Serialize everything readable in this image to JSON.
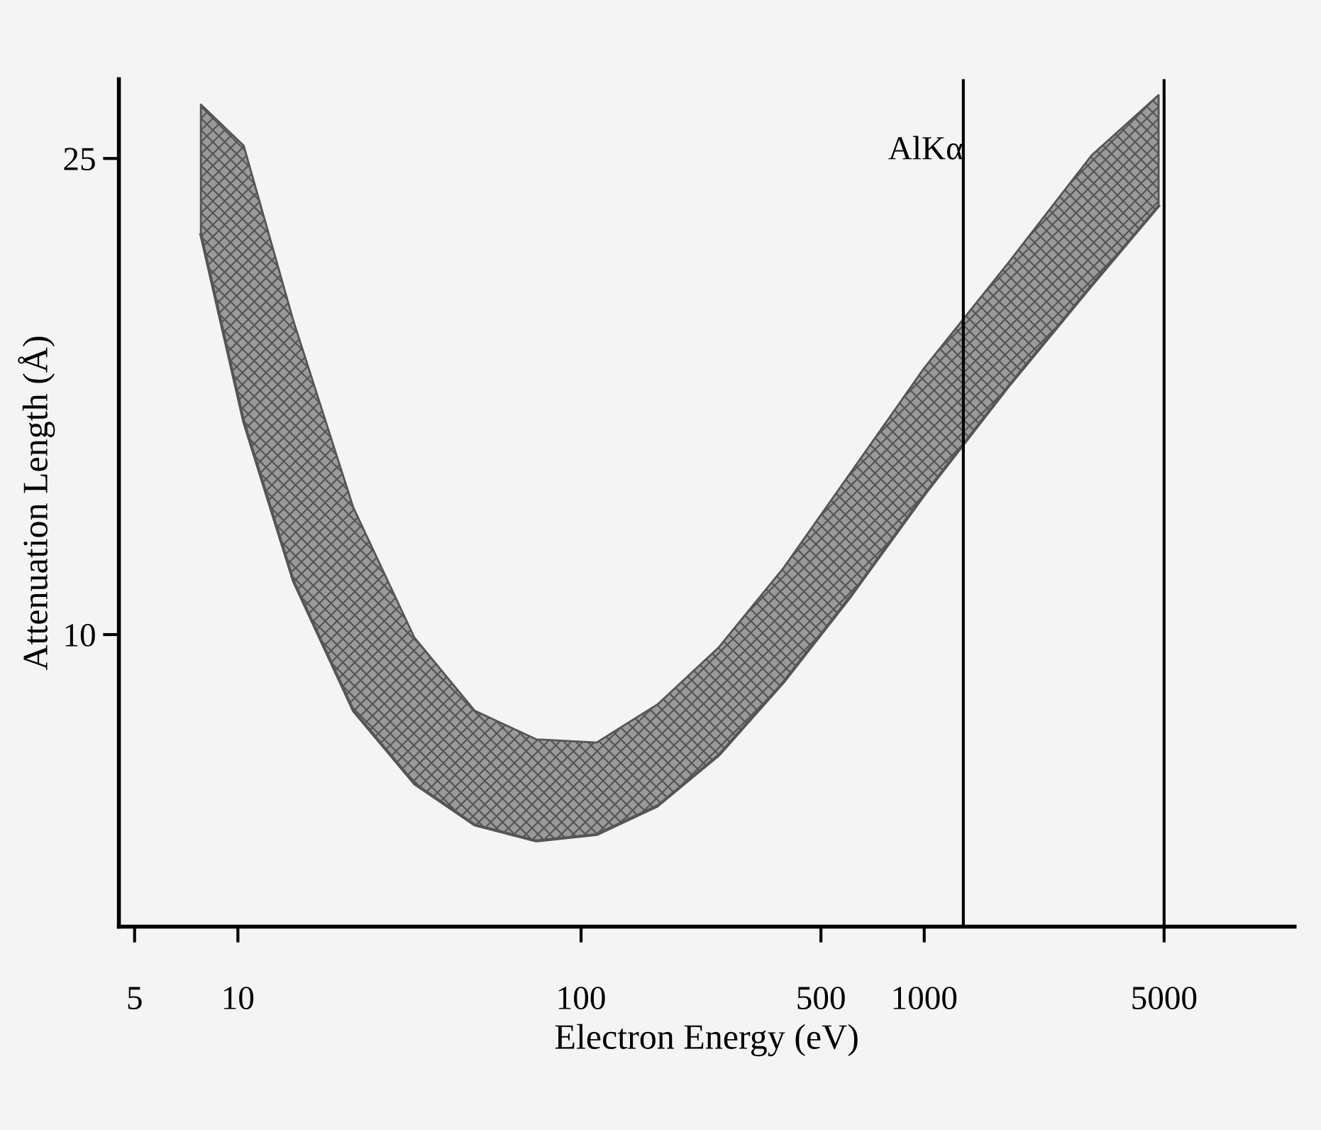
{
  "chart_data": {
    "type": "line",
    "xlabel": "Electron Energy (eV)",
    "ylabel": "Attenuation Length (Å)",
    "log": "x",
    "xlim": [
      4.5,
      12000
    ],
    "xticks": [
      5,
      10,
      100,
      500,
      1000,
      5000
    ],
    "ylim": [
      0.8,
      27.5
    ],
    "yticks": [
      10,
      25
    ],
    "series": [
      {
        "color": "#555555",
        "x": [
          7.8,
          10.4,
          14.5,
          21.7,
          32.7,
          49,
          74,
          111,
          167,
          252,
          389,
          610,
          1000,
          1754,
          3075,
          4820
        ],
        "values": [
          22.6,
          16.7,
          11.7,
          7.6,
          5.3,
          4.0,
          3.5,
          3.7,
          4.6,
          6.2,
          8.5,
          11.2,
          14.4,
          17.8,
          21.0,
          23.5
        ],
        "lower": [
          22.6,
          16.7,
          11.7,
          7.6,
          5.3,
          4.0,
          3.5,
          3.7,
          4.6,
          6.2,
          8.5,
          11.2,
          14.4,
          17.8,
          21.0,
          23.5
        ],
        "upper": [
          26.7,
          25.4,
          19.9,
          14.0,
          9.9,
          7.6,
          6.7,
          6.6,
          7.8,
          9.6,
          12.1,
          15.1,
          18.4,
          21.7,
          25.1,
          27.0
        ]
      }
    ],
    "ref_lines": [
      {
        "axis": "x",
        "value": 1300,
        "label": "AlKα"
      },
      {
        "axis": "x",
        "value": 5000
      }
    ],
    "grid": false,
    "legend": false
  }
}
